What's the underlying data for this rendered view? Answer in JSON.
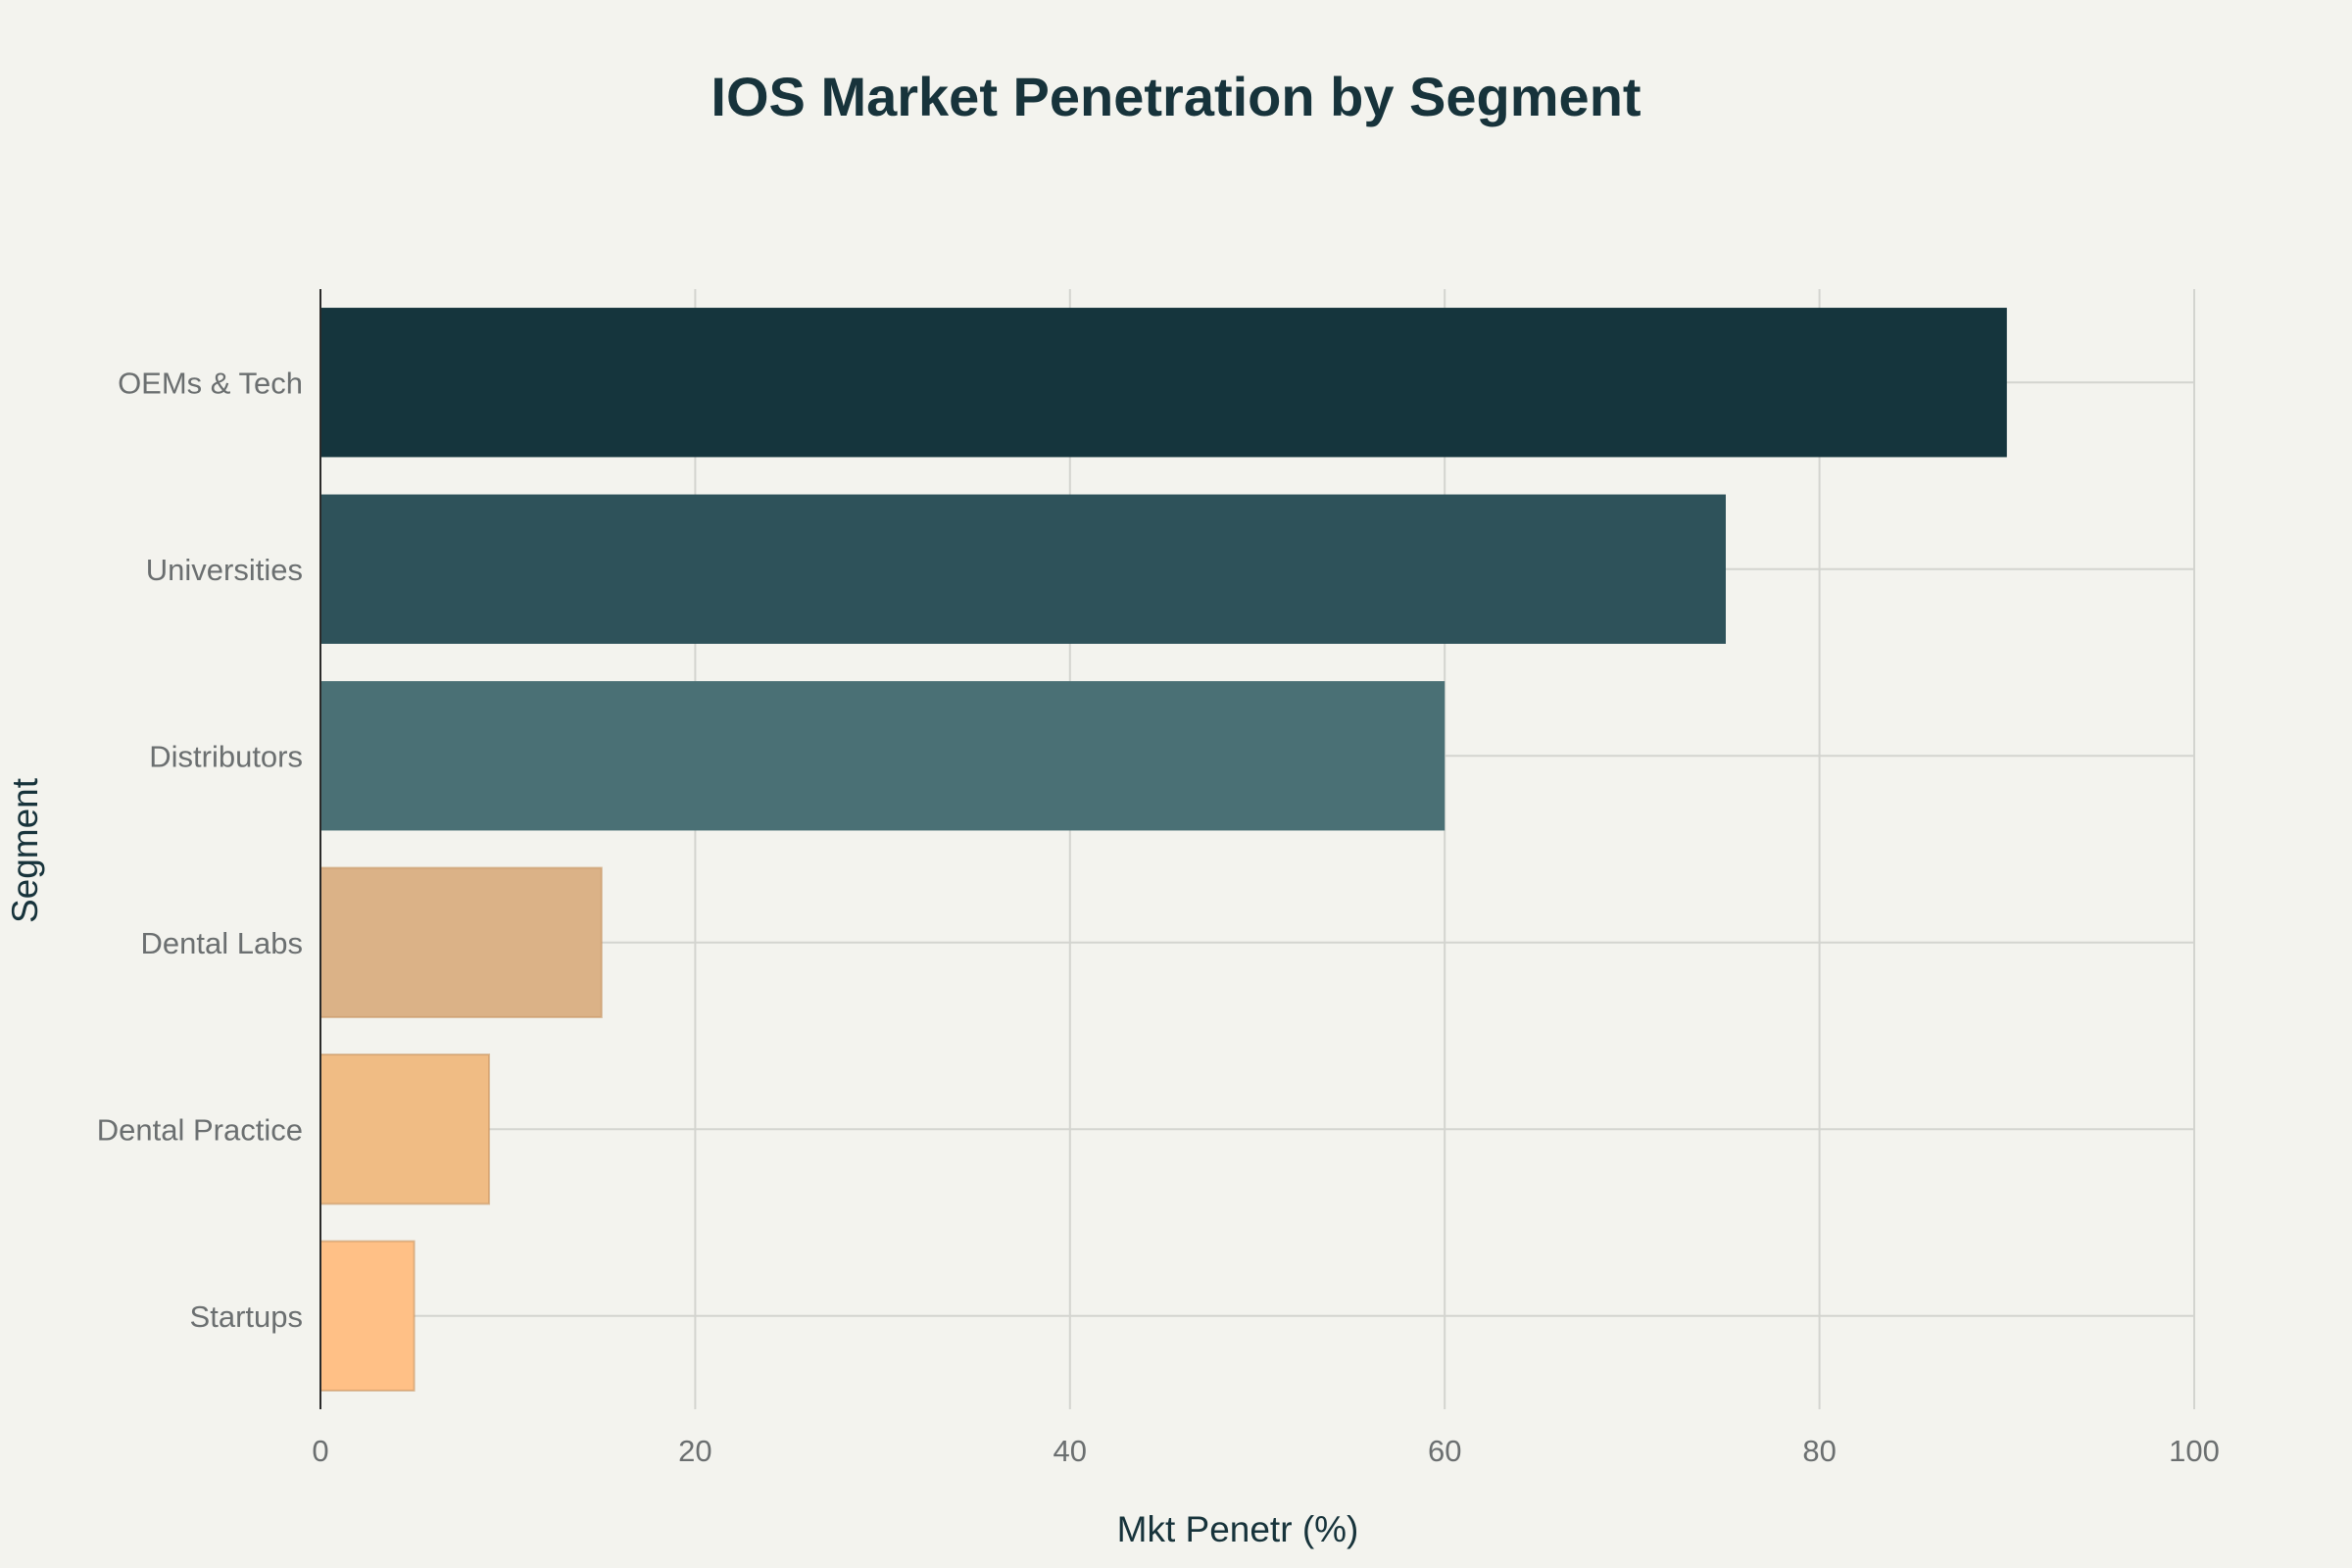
{
  "chart_data": {
    "type": "bar",
    "orientation": "horizontal",
    "title": "IOS Market Penetration by Segment",
    "xlabel": "Mkt Penetr (%)",
    "ylabel": "Segment",
    "xlim": [
      0,
      100
    ],
    "x_ticks": [
      0,
      20,
      40,
      60,
      80,
      100
    ],
    "grid": true,
    "categories": [
      "OEMs & Tech",
      "Universities",
      "Distributors",
      "Dental Labs",
      "Dental Practice",
      "Startups"
    ],
    "values": [
      90,
      75,
      60,
      15,
      9,
      5
    ],
    "colors": [
      "#15353d",
      "#2e525a",
      "#4a7075",
      "#dbb287",
      "#f0bc84",
      "#ffc086"
    ]
  }
}
